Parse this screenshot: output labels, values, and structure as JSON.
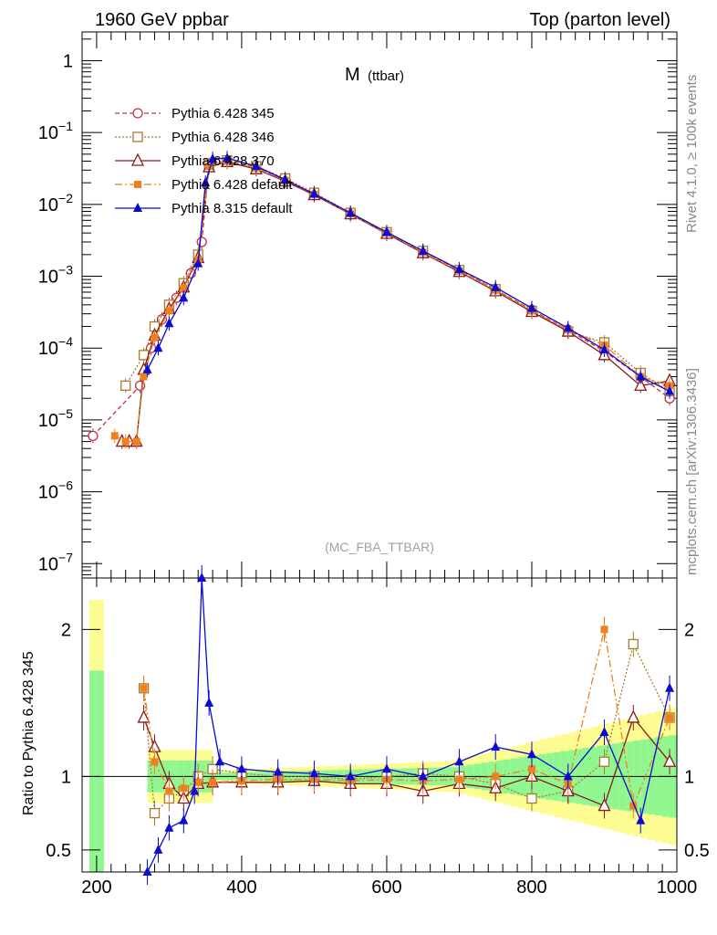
{
  "header": {
    "left": "1960 GeV ppbar",
    "right": "Top (parton level)"
  },
  "side_labels": {
    "rivet": "Rivet 4.1.0, ≥ 100k events",
    "mcplots": "mcplots.cern.ch [arXiv:1306.3436]"
  },
  "chart_data": {
    "type": "line",
    "title_main": "M",
    "title_sub": "(ttbar)",
    "watermark": "(MC_FBA_TTBAR)",
    "xlabel": "",
    "ylabel_main": "",
    "ylabel_ratio": "Ratio to Pythia 6.428 345",
    "xlim": [
      180,
      1000
    ],
    "ylim_main_log10": [
      -7.2,
      0.4
    ],
    "ylim_ratio": [
      0.35,
      2.35
    ],
    "x_tick_labels": [
      "200",
      "400",
      "600",
      "800",
      "1000"
    ],
    "x_ticks": [
      200,
      400,
      600,
      800,
      1000
    ],
    "y_main_tick_labels": [
      {
        "base": "1",
        "exp": ""
      },
      {
        "base": "10",
        "exp": "−1"
      },
      {
        "base": "10",
        "exp": "−2"
      },
      {
        "base": "10",
        "exp": "−3"
      },
      {
        "base": "10",
        "exp": "−4"
      },
      {
        "base": "10",
        "exp": "−5"
      },
      {
        "base": "10",
        "exp": "−6"
      },
      {
        "base": "10",
        "exp": "−7"
      }
    ],
    "y_main_ticks_log10": [
      0,
      -1,
      -2,
      -3,
      -4,
      -5,
      -6,
      -7
    ],
    "y_ratio_tick_labels": [
      "2",
      "1",
      "0.5"
    ],
    "y_ratio_ticks": [
      2,
      1,
      0.5
    ],
    "legend": [
      {
        "label": "Pythia 6.428 345",
        "color": "#c0304a",
        "marker": "open-circle",
        "dash": "5,3"
      },
      {
        "label": "Pythia 6.428 346",
        "color": "#a97a2e",
        "marker": "open-square",
        "dash": "2,2"
      },
      {
        "label": "Pythia 6.428 370",
        "color": "#8b1a1a",
        "marker": "open-triangle",
        "dash": ""
      },
      {
        "label": "Pythia 6.428 default",
        "color": "#f07f1e",
        "marker": "filled-square",
        "dash": "8,3,2,3"
      },
      {
        "label": "Pythia 8.315 default",
        "color": "#0a0ad6",
        "marker": "filled-triangle",
        "dash": ""
      }
    ],
    "series": [
      {
        "name": "Pythia 6.428 345",
        "x": [
          195,
          260,
          275,
          290,
          310,
          330,
          345,
          355,
          380,
          420,
          460,
          500,
          550,
          600,
          650,
          700,
          750,
          800,
          850,
          900,
          950,
          990
        ],
        "y": [
          6e-06,
          3e-05,
          0.0001,
          0.00025,
          0.0005,
          0.0011,
          0.003,
          0.035,
          0.04,
          0.033,
          0.022,
          0.014,
          0.0075,
          0.004,
          0.0022,
          0.0012,
          0.00065,
          0.00034,
          0.00018,
          9e-05,
          4e-05,
          2e-05
        ]
      },
      {
        "name": "Pythia 6.428 346",
        "x": [
          240,
          265,
          280,
          300,
          320,
          340,
          355,
          380,
          420,
          460,
          500,
          550,
          600,
          650,
          700,
          750,
          800,
          850,
          900,
          950,
          990
        ],
        "y": [
          3e-05,
          8e-05,
          0.0002,
          0.0004,
          0.0008,
          0.002,
          0.036,
          0.041,
          0.034,
          0.023,
          0.0145,
          0.0076,
          0.0041,
          0.00225,
          0.00122,
          0.00066,
          0.00033,
          0.00017,
          0.00012,
          4.5e-05,
          2.5e-05
        ]
      },
      {
        "name": "Pythia 6.428 370",
        "x": [
          235,
          245,
          255,
          265,
          280,
          300,
          320,
          340,
          355,
          380,
          420,
          460,
          500,
          550,
          600,
          650,
          700,
          750,
          800,
          850,
          900,
          950,
          990
        ],
        "y": [
          5e-06,
          5e-06,
          5e-06,
          5e-05,
          0.00015,
          0.00035,
          0.0007,
          0.0018,
          0.033,
          0.039,
          0.031,
          0.021,
          0.0135,
          0.0073,
          0.0039,
          0.0021,
          0.00115,
          0.00062,
          0.00032,
          0.00017,
          8e-05,
          3e-05,
          3.5e-05
        ]
      },
      {
        "name": "Pythia 6.428 default",
        "x": [
          225,
          240,
          255,
          265,
          280,
          300,
          320,
          340,
          355,
          380,
          420,
          460,
          500,
          550,
          600,
          650,
          700,
          750,
          800,
          850,
          900,
          950,
          990
        ],
        "y": [
          6e-06,
          5e-06,
          5e-06,
          4e-05,
          0.00014,
          0.00033,
          0.00068,
          0.0017,
          0.034,
          0.04,
          0.032,
          0.0215,
          0.0138,
          0.0074,
          0.004,
          0.00215,
          0.00118,
          0.00064,
          0.00033,
          0.00018,
          0.00011,
          4e-05,
          3e-05
        ]
      },
      {
        "name": "Pythia 8.315 default",
        "x": [
          270,
          285,
          300,
          320,
          340,
          350,
          360,
          380,
          420,
          460,
          500,
          550,
          600,
          650,
          700,
          750,
          800,
          850,
          900,
          950,
          990
        ],
        "y": [
          5e-05,
          0.0001,
          0.00022,
          0.0005,
          0.0015,
          0.02,
          0.043,
          0.044,
          0.034,
          0.022,
          0.014,
          0.0076,
          0.0041,
          0.00225,
          0.00125,
          0.0007,
          0.00036,
          0.00019,
          9.5e-05,
          4e-05,
          2.5e-05
        ]
      }
    ],
    "ratio_series": [
      {
        "name": "Pythia 6.428 346",
        "x": [
          265,
          280,
          300,
          320,
          340,
          360,
          400,
          450,
          500,
          550,
          600,
          650,
          700,
          750,
          800,
          850,
          900,
          940,
          990
        ],
        "y": [
          1.6,
          0.75,
          0.85,
          0.9,
          1.0,
          1.05,
          1.02,
          1.0,
          1.0,
          0.98,
          1.0,
          1.02,
          1.0,
          0.95,
          0.85,
          0.9,
          1.1,
          1.9,
          1.4
        ]
      },
      {
        "name": "Pythia 6.428 370",
        "x": [
          265,
          280,
          300,
          320,
          340,
          360,
          400,
          450,
          500,
          550,
          600,
          650,
          700,
          750,
          800,
          850,
          900,
          940,
          990
        ],
        "y": [
          1.4,
          1.2,
          0.95,
          0.85,
          0.95,
          0.96,
          0.96,
          0.96,
          0.97,
          0.95,
          0.95,
          0.9,
          0.95,
          0.92,
          1.0,
          0.9,
          0.8,
          1.4,
          1.1
        ]
      },
      {
        "name": "Pythia 6.428 default",
        "x": [
          265,
          280,
          300,
          320,
          340,
          360,
          400,
          450,
          500,
          550,
          600,
          650,
          700,
          750,
          800,
          850,
          900,
          940,
          990
        ],
        "y": [
          1.6,
          1.1,
          0.9,
          0.92,
          0.96,
          0.96,
          0.97,
          0.98,
          0.98,
          0.97,
          0.98,
          0.97,
          0.98,
          1.0,
          1.05,
          0.95,
          2.0,
          0.8,
          1.4
        ]
      },
      {
        "name": "Pythia 8.315 default",
        "x": [
          270,
          285,
          300,
          320,
          335,
          345,
          355,
          370,
          400,
          450,
          500,
          550,
          600,
          650,
          700,
          750,
          800,
          850,
          900,
          950,
          990
        ],
        "y": [
          0.35,
          0.5,
          0.65,
          0.7,
          0.9,
          2.35,
          1.5,
          1.1,
          1.05,
          1.03,
          1.02,
          1.0,
          1.05,
          1.0,
          1.1,
          1.2,
          1.15,
          1.0,
          1.3,
          0.7,
          1.6
        ]
      }
    ],
    "uncertainty_bands": {
      "inner_color": "#90f790",
      "outer_color": "#fcfc90"
    }
  }
}
